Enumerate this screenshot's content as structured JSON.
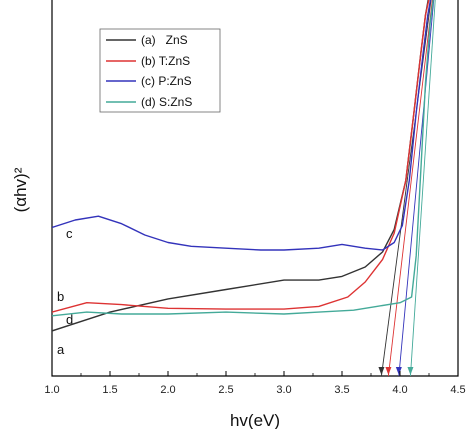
{
  "chart_data": {
    "type": "line",
    "title": "",
    "xlabel": "hv(eV)",
    "ylabel": "(αhv)²",
    "xlim": [
      1.0,
      4.5
    ],
    "ylim": [
      0,
      100
    ],
    "y_ticks_shown": false,
    "x_ticks": [
      1.0,
      1.5,
      2.0,
      2.5,
      3.0,
      3.5,
      4.0,
      4.5
    ],
    "x_tick_labels": [
      "1.0",
      "1.5",
      "2.0",
      "2.5",
      "3.0",
      "3.5",
      "4.0",
      "4.5"
    ],
    "grid": false,
    "legend_position": "top-center",
    "series": [
      {
        "name": "(a)   ZnS",
        "curve_label": "a",
        "color": "#333333",
        "x": [
          1.0,
          1.5,
          2.0,
          2.5,
          3.0,
          3.3,
          3.5,
          3.7,
          3.85,
          3.95,
          4.05,
          4.12,
          4.18,
          4.22,
          4.26
        ],
        "y": [
          12,
          17,
          20.5,
          23,
          25.5,
          25.5,
          26.5,
          29,
          33,
          39,
          52,
          70,
          86,
          96,
          103
        ]
      },
      {
        "name": "(b) T:ZnS",
        "curve_label": "b",
        "color": "#dd3333",
        "x": [
          1.0,
          1.3,
          1.6,
          2.0,
          2.5,
          3.0,
          3.3,
          3.55,
          3.7,
          3.85,
          3.95,
          4.05,
          4.12,
          4.18,
          4.22,
          4.27
        ],
        "y": [
          17,
          19.5,
          19,
          18,
          17.8,
          17.8,
          18.5,
          21,
          25,
          31,
          38,
          52,
          70,
          86,
          96,
          103
        ]
      },
      {
        "name": "(c) P:ZnS",
        "curve_label": "c",
        "color": "#3333bb",
        "x": [
          1.0,
          1.2,
          1.4,
          1.6,
          1.8,
          2.0,
          2.2,
          2.5,
          2.8,
          3.0,
          3.3,
          3.5,
          3.7,
          3.85,
          3.95,
          4.02,
          4.08,
          4.14,
          4.2,
          4.24,
          4.28
        ],
        "y": [
          39.5,
          41.5,
          42.5,
          40.5,
          37.5,
          35.5,
          34.5,
          34,
          33.5,
          33.5,
          34,
          35,
          34,
          33.5,
          35.5,
          40,
          52,
          70,
          86,
          96,
          103
        ]
      },
      {
        "name": "(d) S:ZnS",
        "curve_label": "d",
        "color": "#44aa99",
        "x": [
          1.0,
          1.3,
          1.6,
          2.0,
          2.5,
          3.0,
          3.3,
          3.6,
          3.8,
          4.0,
          4.1,
          4.14,
          4.18,
          4.22,
          4.26,
          4.3
        ],
        "y": [
          16,
          17,
          16.5,
          16.5,
          17,
          16.5,
          17,
          17.5,
          18.5,
          19.5,
          21,
          32,
          55,
          78,
          94,
          103
        ]
      }
    ],
    "tangent_lines": [
      {
        "color": "#333333",
        "x": [
          4.28,
          3.84
        ],
        "y": [
          103,
          0
        ]
      },
      {
        "color": "#dd3333",
        "x": [
          4.29,
          3.9
        ],
        "y": [
          103,
          0
        ]
      },
      {
        "color": "#3333bb",
        "x": [
          4.3,
          3.99
        ],
        "y": [
          103,
          0
        ]
      },
      {
        "color": "#44aa99",
        "x": [
          4.31,
          4.09
        ],
        "y": [
          103,
          0
        ]
      }
    ],
    "intercept_markers": [
      {
        "color": "#333333",
        "x": 3.84
      },
      {
        "color": "#dd3333",
        "x": 3.9
      },
      {
        "color": "#3333bb",
        "x": 3.99
      },
      {
        "color": "#44aa99",
        "x": 4.09
      }
    ]
  }
}
